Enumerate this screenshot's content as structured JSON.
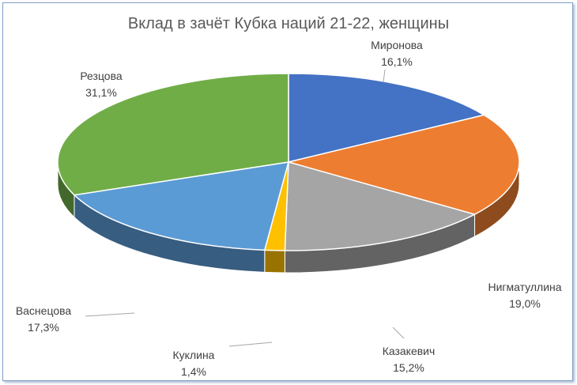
{
  "chart_data": {
    "type": "pie",
    "title": "Вклад в зачёт Кубка наций 21-22, женщины",
    "slices": [
      {
        "name": "Миронова",
        "value": 16.1,
        "label": "16,1%",
        "color": "#4472c4"
      },
      {
        "name": "Нигматуллина",
        "value": 19.0,
        "label": "19,0%",
        "color": "#ed7d31"
      },
      {
        "name": "Казакевич",
        "value": 15.2,
        "label": "15,2%",
        "color": "#a5a5a5"
      },
      {
        "name": "Куклина",
        "value": 1.4,
        "label": "1,4%",
        "color": "#ffc000"
      },
      {
        "name": "Васнецова",
        "value": 17.3,
        "label": "17,3%",
        "color": "#5b9bd5"
      },
      {
        "name": "Резцова",
        "value": 31.1,
        "label": "31,1%",
        "color": "#70ad47"
      }
    ],
    "style": "3d-pie"
  }
}
